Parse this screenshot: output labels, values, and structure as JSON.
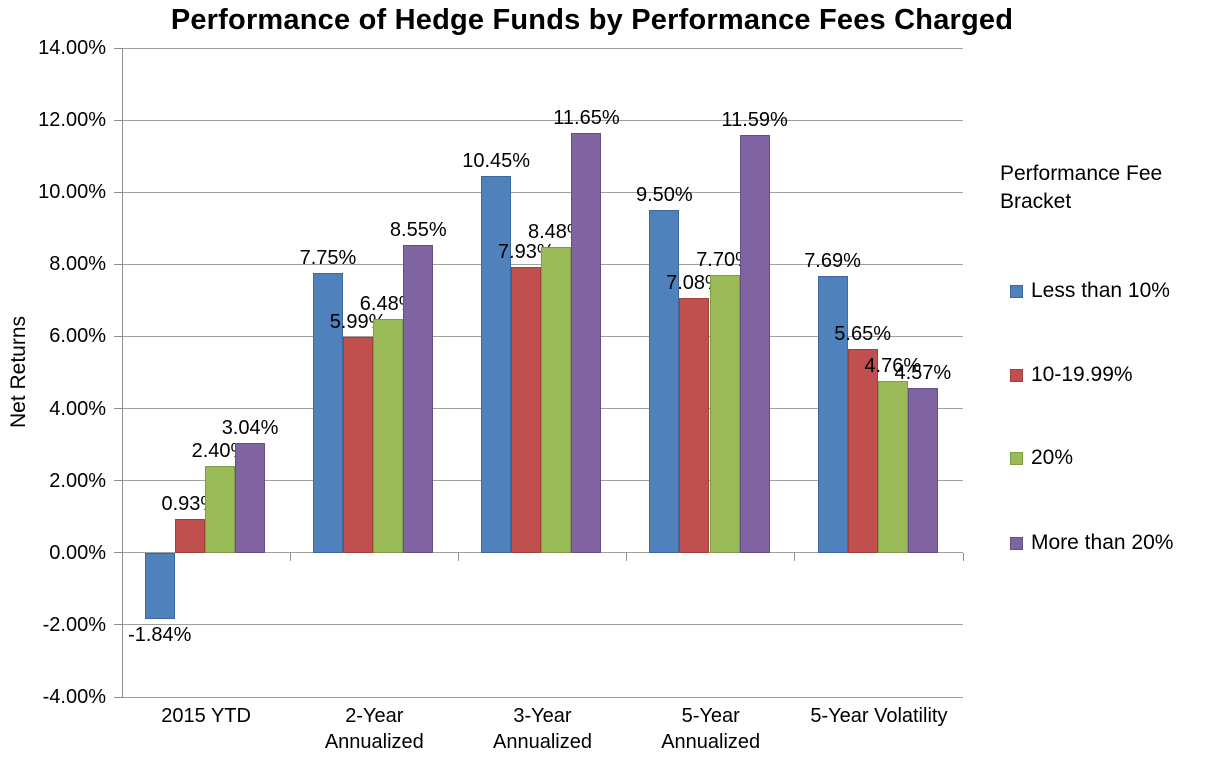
{
  "chart_data": {
    "type": "bar",
    "title": "Performance of Hedge Funds by Performance Fees Charged",
    "ylabel": "Net Returns",
    "xlabel": "",
    "categories": [
      "2015 YTD",
      "2-Year\nAnnualized",
      "3-Year\nAnnualized",
      "5-Year\nAnnualized",
      "5-Year Volatility"
    ],
    "series": [
      {
        "name": "Less than 10%",
        "color": "#4F81BD",
        "border_color": "#3D689B",
        "values": [
          -1.84,
          7.75,
          10.45,
          9.5,
          7.69
        ]
      },
      {
        "name": "10-19.99%",
        "color": "#C0504D",
        "border_color": "#A03F3D",
        "values": [
          0.93,
          5.99,
          7.93,
          7.08,
          5.65
        ]
      },
      {
        "name": "20%",
        "color": "#9BBB59",
        "border_color": "#7F9C46",
        "values": [
          2.4,
          6.48,
          8.48,
          7.7,
          4.76
        ]
      },
      {
        "name": "More than 20%",
        "color": "#8064A2",
        "border_color": "#664F84",
        "values": [
          3.04,
          8.55,
          11.65,
          11.59,
          4.57
        ]
      }
    ],
    "ylim": [
      -4,
      14
    ],
    "ytick_step": 2,
    "ytick_labels": [
      "14.00%",
      "12.00%",
      "10.00%",
      "8.00%",
      "6.00%",
      "4.00%",
      "2.00%",
      "0.00%",
      "-2.00%",
      "-4.00%"
    ],
    "data_labels_visible": true,
    "grid": true,
    "legend": {
      "position": "right",
      "title": "Performance Fee Bracket"
    }
  },
  "colors": {
    "gridline": "#A0A0A0",
    "axis": "#8F8F8F",
    "text": "#000000",
    "background": "#FFFFFF"
  }
}
